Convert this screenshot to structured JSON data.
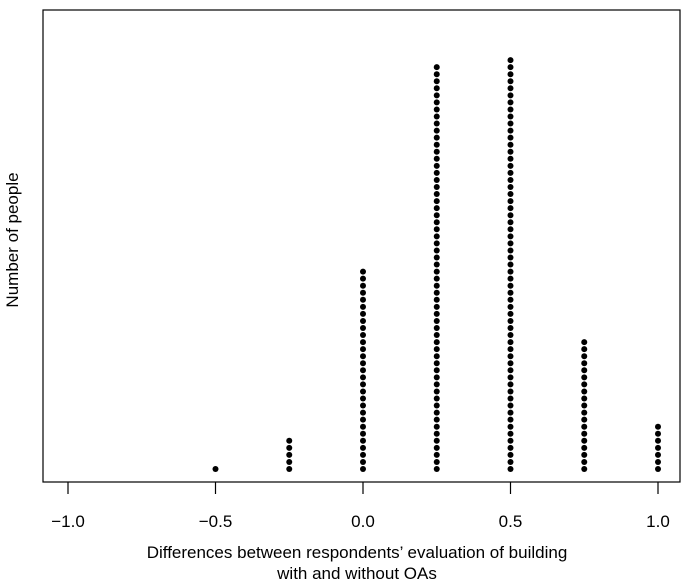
{
  "chart_data": {
    "type": "dot",
    "xlabel_lines": [
      "Differences between respondents’ evaluation of building",
      "with and without OAs"
    ],
    "ylabel": "Number of people",
    "xlim": [
      -1.0,
      1.0
    ],
    "x_ticks": [
      -1.0,
      -0.5,
      0.0,
      0.5,
      1.0
    ],
    "x_tick_labels": [
      "−1.0",
      "−0.5",
      "0.0",
      "0.5",
      "1.0"
    ],
    "x": [
      -0.5,
      -0.25,
      0.0,
      0.25,
      0.5,
      0.75,
      1.0
    ],
    "counts": [
      1,
      5,
      29,
      58,
      59,
      19,
      7
    ],
    "y_ticks_shown": false,
    "grid": false,
    "dot_color": "#000000"
  }
}
